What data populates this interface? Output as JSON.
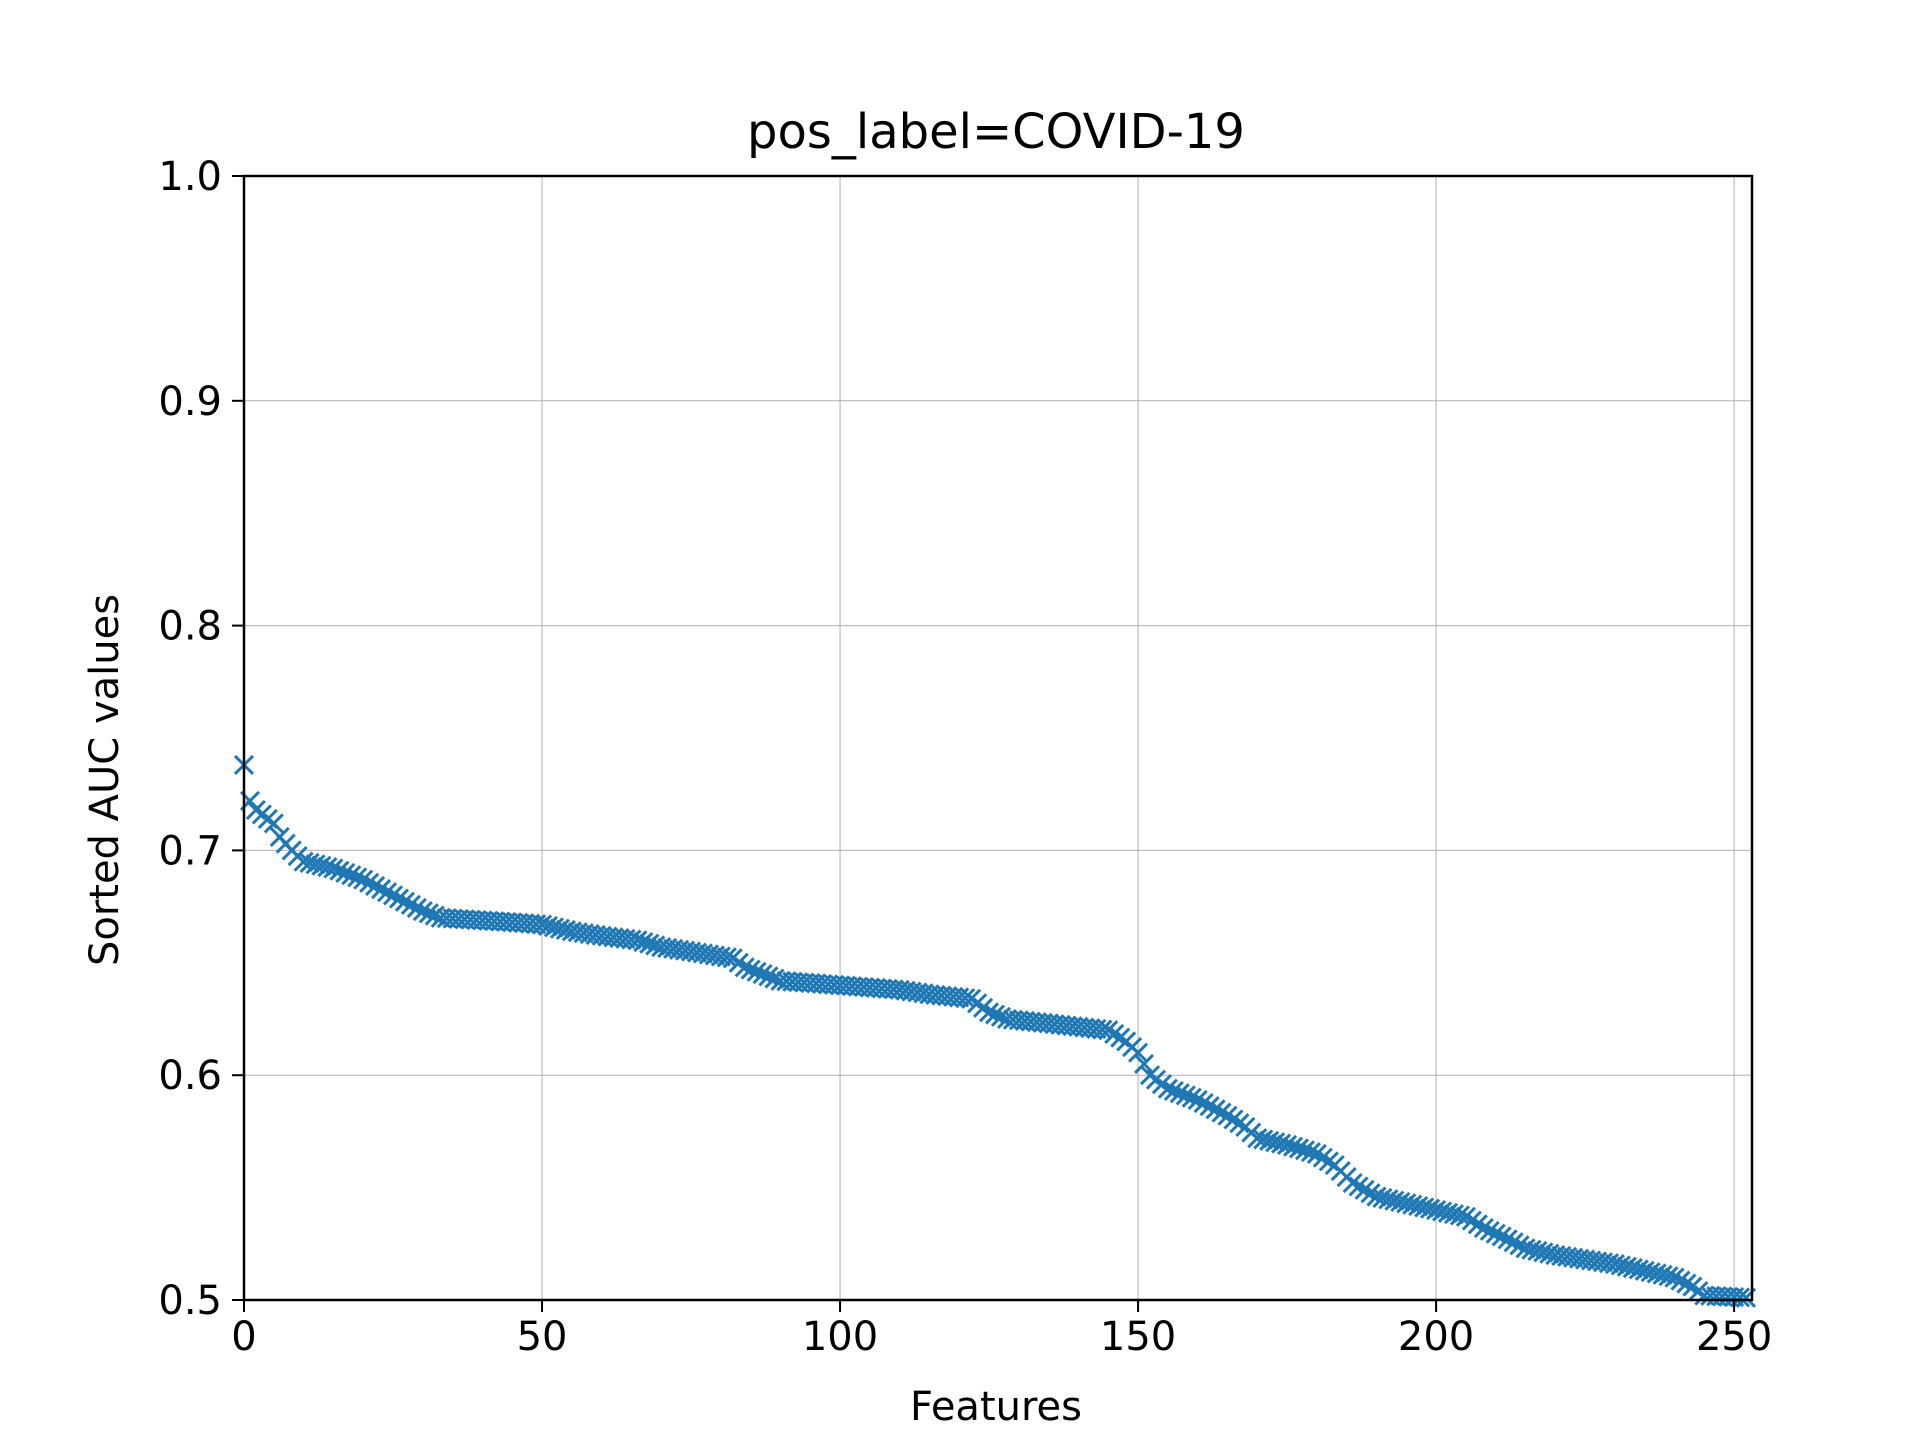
{
  "chart_data": {
    "type": "scatter",
    "title": "pos_label=COVID-19",
    "xlabel": "Features",
    "ylabel": "Sorted AUC values",
    "xlim": [
      0,
      253
    ],
    "ylim": [
      0.5,
      1.0
    ],
    "xticks": [
      0,
      50,
      100,
      150,
      200,
      250
    ],
    "yticks": [
      0.5,
      0.6,
      0.7,
      0.8,
      0.9,
      1.0
    ],
    "xtick_labels": [
      "0",
      "50",
      "100",
      "150",
      "200",
      "250"
    ],
    "ytick_labels": [
      "0.5",
      "0.6",
      "0.7",
      "0.8",
      "0.9",
      "1.0"
    ],
    "grid": true,
    "marker": "x",
    "color": "#1f77b4",
    "series": [
      {
        "anchors": [
          [
            0,
            0.738
          ],
          [
            1,
            0.722
          ],
          [
            2,
            0.718
          ],
          [
            3,
            0.716
          ],
          [
            5,
            0.712
          ],
          [
            6,
            0.706
          ],
          [
            8,
            0.7
          ],
          [
            10,
            0.695
          ],
          [
            15,
            0.692
          ],
          [
            20,
            0.687
          ],
          [
            25,
            0.68
          ],
          [
            30,
            0.673
          ],
          [
            33,
            0.67
          ],
          [
            45,
            0.668
          ],
          [
            50,
            0.667
          ],
          [
            55,
            0.664
          ],
          [
            60,
            0.662
          ],
          [
            66,
            0.66
          ],
          [
            70,
            0.657
          ],
          [
            75,
            0.655
          ],
          [
            82,
            0.652
          ],
          [
            84,
            0.648
          ],
          [
            87,
            0.645
          ],
          [
            90,
            0.642
          ],
          [
            100,
            0.64
          ],
          [
            110,
            0.638
          ],
          [
            115,
            0.636
          ],
          [
            122,
            0.634
          ],
          [
            125,
            0.628
          ],
          [
            128,
            0.625
          ],
          [
            135,
            0.623
          ],
          [
            145,
            0.62
          ],
          [
            148,
            0.615
          ],
          [
            150,
            0.61
          ],
          [
            152,
            0.6
          ],
          [
            155,
            0.594
          ],
          [
            160,
            0.589
          ],
          [
            165,
            0.582
          ],
          [
            168,
            0.577
          ],
          [
            170,
            0.572
          ],
          [
            175,
            0.569
          ],
          [
            180,
            0.565
          ],
          [
            183,
            0.56
          ],
          [
            186,
            0.552
          ],
          [
            190,
            0.546
          ],
          [
            195,
            0.543
          ],
          [
            200,
            0.54
          ],
          [
            205,
            0.537
          ],
          [
            208,
            0.532
          ],
          [
            212,
            0.527
          ],
          [
            215,
            0.523
          ],
          [
            220,
            0.52
          ],
          [
            230,
            0.516
          ],
          [
            235,
            0.513
          ],
          [
            240,
            0.51
          ],
          [
            243,
            0.506
          ],
          [
            245,
            0.502
          ],
          [
            252,
            0.501
          ]
        ],
        "count": 253
      }
    ]
  }
}
